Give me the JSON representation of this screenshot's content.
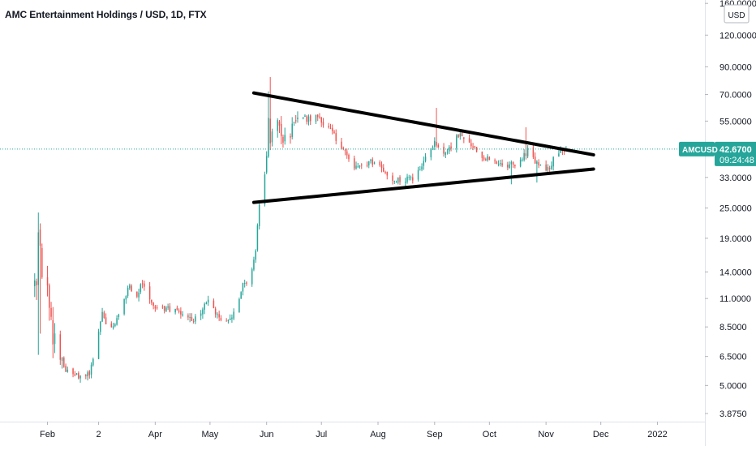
{
  "colors": {
    "up": "#26a69a",
    "down": "#ef5350",
    "pattern_line": "#000000",
    "price_line": "#26a69a",
    "axis_text": "#131722",
    "background": "#ffffff"
  },
  "chart_data": {
    "type": "candlestick",
    "title": "AMC Entertainment Holdings / USD, 1D, FTX",
    "y_scale": "log",
    "ylim": [
      3.6,
      165
    ],
    "currency_label": "USD",
    "y_ticks": [
      "160.0000",
      "120.0000",
      "90.0000",
      "70.0000",
      "55.0000",
      "42.6700",
      "33.0000",
      "25.0000",
      "19.0000",
      "14.0000",
      "11.0000",
      "8.5000",
      "6.5000",
      "5.0000",
      "3.8750"
    ],
    "y_tick_values": [
      160,
      120,
      90,
      70,
      55,
      42.67,
      33,
      25,
      19,
      14,
      11,
      8.5,
      6.5,
      5,
      3.875
    ],
    "x_ticks": [
      "Feb",
      "2",
      "Apr",
      "May",
      "Jun",
      "Jul",
      "Aug",
      "Sep",
      "Oct",
      "Nov",
      "Dec",
      "2022"
    ],
    "x_tick_dates": [
      "2021-02-01",
      "2021-03-01",
      "2021-04-01",
      "2021-05-01",
      "2021-06-01",
      "2021-07-01",
      "2021-08-01",
      "2021-09-01",
      "2021-10-01",
      "2021-11-01",
      "2021-12-01",
      "2022-01-01"
    ],
    "xlim": [
      "2021-01-06",
      "2022-01-27"
    ],
    "symbol_label": "AMCUSD",
    "last_price": 42.67,
    "last_price_label": "42.6700",
    "countdown": "09:24:48",
    "trendlines": [
      {
        "start": [
          "2021-05-25",
          71.0
        ],
        "end": [
          "2021-11-27",
          40.5
        ]
      },
      {
        "start": [
          "2021-05-25",
          26.3
        ],
        "end": [
          "2021-11-27",
          35.6
        ]
      }
    ],
    "anchors": [
      [
        "2021-01-24",
        15.8
      ],
      [
        "2021-01-26",
        13.0
      ],
      [
        "2021-01-27",
        20.0
      ],
      [
        "2021-01-29",
        14.0
      ],
      [
        "2021-02-02",
        11.0
      ],
      [
        "2021-02-04",
        8.0
      ],
      [
        "2021-02-08",
        6.5
      ],
      [
        "2021-02-12",
        5.6
      ],
      [
        "2021-02-18",
        5.45
      ],
      [
        "2021-02-24",
        5.5
      ],
      [
        "2021-02-27",
        6.8
      ],
      [
        "2021-03-03",
        9.8
      ],
      [
        "2021-03-06",
        8.3
      ],
      [
        "2021-03-09",
        8.6
      ],
      [
        "2021-03-13",
        10.0
      ],
      [
        "2021-03-18",
        12.5
      ],
      [
        "2021-03-21",
        10.5
      ],
      [
        "2021-03-25",
        12.8
      ],
      [
        "2021-03-28",
        11.5
      ],
      [
        "2021-04-01",
        10.2
      ],
      [
        "2021-04-10",
        10.0
      ],
      [
        "2021-04-16",
        9.5
      ],
      [
        "2021-04-21",
        9.0
      ],
      [
        "2021-04-27",
        10.0
      ],
      [
        "2021-04-30",
        10.6
      ],
      [
        "2021-05-06",
        9.2
      ],
      [
        "2021-05-11",
        9.0
      ],
      [
        "2021-05-15",
        10.0
      ],
      [
        "2021-05-19",
        12.5
      ],
      [
        "2021-05-23",
        13.0
      ],
      [
        "2021-05-26",
        17.0
      ],
      [
        "2021-05-28",
        26.0
      ],
      [
        "2021-05-31",
        33.0
      ],
      [
        "2021-06-02",
        55.0
      ],
      [
        "2021-06-03",
        47.0
      ],
      [
        "2021-06-07",
        55.0
      ],
      [
        "2021-06-10",
        46.0
      ],
      [
        "2021-06-14",
        50.0
      ],
      [
        "2021-06-18",
        58.0
      ],
      [
        "2021-06-24",
        56.0
      ],
      [
        "2021-06-28",
        58.0
      ],
      [
        "2021-07-04",
        52.0
      ],
      [
        "2021-07-08",
        48.0
      ],
      [
        "2021-07-14",
        42.0
      ],
      [
        "2021-07-18",
        36.0
      ],
      [
        "2021-07-22",
        36.0
      ],
      [
        "2021-07-28",
        38.0
      ],
      [
        "2021-08-03",
        36.0
      ],
      [
        "2021-08-08",
        33.0
      ],
      [
        "2021-08-13",
        32.0
      ],
      [
        "2021-08-20",
        33.0
      ],
      [
        "2021-08-24",
        36.0
      ],
      [
        "2021-08-28",
        40.0
      ],
      [
        "2021-09-01",
        45.0
      ],
      [
        "2021-09-05",
        41.0
      ],
      [
        "2021-09-10",
        44.0
      ],
      [
        "2021-09-15",
        49.0
      ],
      [
        "2021-09-19",
        47.0
      ],
      [
        "2021-09-24",
        42.0
      ],
      [
        "2021-09-30",
        39.0
      ],
      [
        "2021-10-05",
        37.5
      ],
      [
        "2021-10-11",
        37.0
      ],
      [
        "2021-10-17",
        38.0
      ],
      [
        "2021-10-22",
        42.0
      ],
      [
        "2021-10-26",
        38.0
      ],
      [
        "2021-10-31",
        35.0
      ],
      [
        "2021-11-04",
        37.0
      ],
      [
        "2021-11-07",
        42.0
      ],
      [
        "2021-11-13",
        42.67
      ]
    ]
  }
}
